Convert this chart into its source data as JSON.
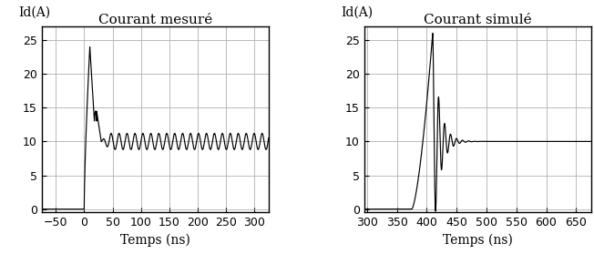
{
  "left_title": "Courant mesuré",
  "right_title": "Courant simulé",
  "ylabel": "Id(A)",
  "xlabel": "Temps (ns)",
  "left_xlim": [
    -75,
    325
  ],
  "right_xlim": [
    295,
    675
  ],
  "ylim": [
    -0.5,
    27
  ],
  "left_xticks": [
    -50,
    0,
    50,
    100,
    150,
    200,
    250,
    300
  ],
  "right_xticks": [
    300,
    350,
    400,
    450,
    500,
    550,
    600,
    650
  ],
  "yticks": [
    0,
    5,
    10,
    15,
    20,
    25
  ],
  "line_color": "#000000",
  "bg_color": "#ffffff",
  "grid_color": "#b0b0b0",
  "title_fontsize": 11,
  "label_fontsize": 10,
  "tick_fontsize": 9
}
